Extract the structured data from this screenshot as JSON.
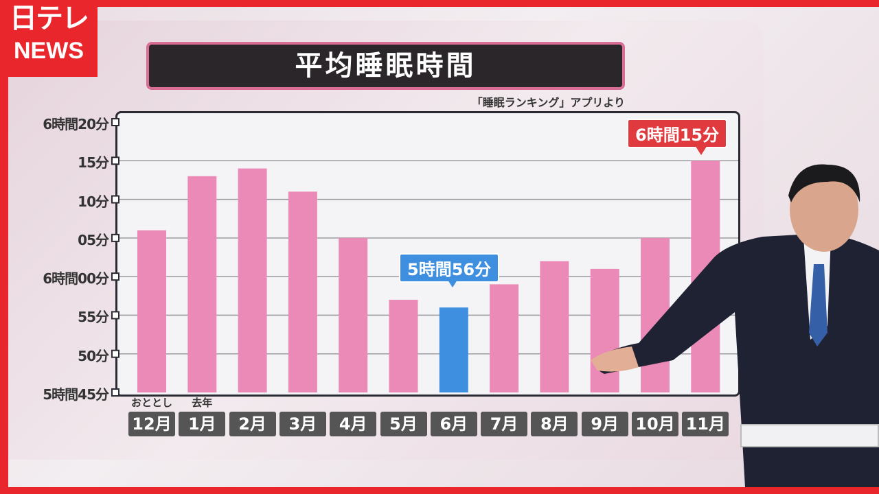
{
  "logo": {
    "line1": "日テレ",
    "line2": "NEWS"
  },
  "title": "平均睡眠時間",
  "source": "「睡眠ランキング」アプリより",
  "colors": {
    "bar": "#ec8ab7",
    "highlight": "#3f8fe0",
    "max_callout": "#e0393e",
    "min_callout": "#3f8fe0",
    "title_bg": "#2b2629"
  },
  "chart_data": {
    "type": "bar",
    "title": "平均睡眠時間",
    "unit": "minutes",
    "categories": [
      "12月",
      "1月",
      "2月",
      "3月",
      "4月",
      "5月",
      "6月",
      "7月",
      "8月",
      "9月",
      "10月",
      "11月"
    ],
    "category_sublabels": {
      "12月": "おととし",
      "1月": "去年"
    },
    "values": [
      366,
      373,
      374,
      371,
      365,
      357,
      356,
      359,
      362,
      361,
      365,
      375
    ],
    "highlight": "6月",
    "ylim": [
      345,
      380
    ],
    "yticks": [
      345,
      350,
      355,
      360,
      365,
      370,
      375,
      380
    ],
    "ytick_labels": [
      "5時間45分",
      "50分",
      "55分",
      "6時間00分",
      "05分",
      "10分",
      "15分",
      "6時間20分"
    ],
    "grid": true,
    "annotations": [
      {
        "category": "6月",
        "text": "5時間56分"
      },
      {
        "category": "11月",
        "text": "6時間15分"
      }
    ]
  }
}
